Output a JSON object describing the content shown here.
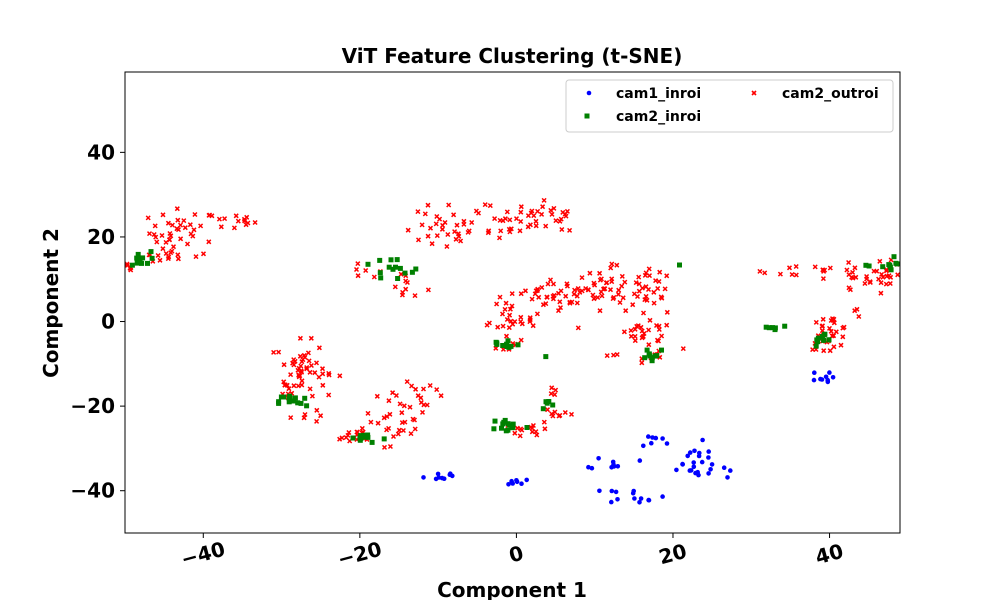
{
  "chart_data": {
    "type": "scatter",
    "title": "ViT Feature Clustering (t-SNE)",
    "xlabel": "Component 1",
    "ylabel": "Component 2",
    "xlim": [
      -50,
      49
    ],
    "ylim": [
      -50,
      59
    ],
    "xticks": [
      -40,
      -20,
      0,
      20,
      40
    ],
    "yticks": [
      -40,
      -20,
      0,
      20,
      40
    ],
    "xtick_labels": [
      "−40",
      "−20",
      "0",
      "20",
      "40"
    ],
    "ytick_labels": [
      "−40",
      "−20",
      "0",
      "20",
      "40"
    ],
    "grid": false,
    "legend": {
      "location": "upper right",
      "columns": 2
    },
    "series": [
      {
        "name": "cam1_inroi",
        "color": "#0000ff",
        "marker": "circle",
        "clusters": [
          {
            "cx": -9.5,
            "cy": -36.5,
            "sx": 1.1,
            "sy": 0.6,
            "n": 9
          },
          {
            "cx": 0.0,
            "cy": -37.5,
            "sx": 0.6,
            "sy": 0.6,
            "n": 7
          },
          {
            "cx": 12.5,
            "cy": -33.5,
            "sx": 1.5,
            "sy": 0.8,
            "n": 9
          },
          {
            "cx": 15.0,
            "cy": -41.0,
            "sx": 2.0,
            "sy": 0.9,
            "n": 13
          },
          {
            "cx": 17.5,
            "cy": -28.5,
            "sx": 1.2,
            "sy": 1.0,
            "n": 7
          },
          {
            "cx": 22.5,
            "cy": -33.5,
            "sx": 2.0,
            "sy": 2.5,
            "n": 22
          },
          {
            "cx": 26.5,
            "cy": -35.5,
            "sx": 0.4,
            "sy": 0.7,
            "n": 3
          },
          {
            "cx": 38.7,
            "cy": -13.5,
            "sx": 0.8,
            "sy": 0.8,
            "n": 9
          }
        ]
      },
      {
        "name": "cam2_inroi",
        "color": "#008000",
        "marker": "square",
        "clusters": [
          {
            "cx": -48.3,
            "cy": 14.5,
            "sx": 0.8,
            "sy": 1.0,
            "n": 12
          },
          {
            "cx": -16.5,
            "cy": 12.0,
            "sx": 2.5,
            "sy": 1.6,
            "n": 14
          },
          {
            "cx": -28.5,
            "cy": -19.0,
            "sx": 0.9,
            "sy": 1.0,
            "n": 14
          },
          {
            "cx": -19.5,
            "cy": -27.5,
            "sx": 1.5,
            "sy": 0.6,
            "n": 14
          },
          {
            "cx": -1.5,
            "cy": -5.5,
            "sx": 1.0,
            "sy": 0.7,
            "n": 12
          },
          {
            "cx": 3.8,
            "cy": -8.5,
            "sx": 0.2,
            "sy": 0.2,
            "n": 1
          },
          {
            "cx": -1.0,
            "cy": -24.5,
            "sx": 1.1,
            "sy": 0.9,
            "n": 14
          },
          {
            "cx": 4.0,
            "cy": -19.5,
            "sx": 0.4,
            "sy": 0.7,
            "n": 5
          },
          {
            "cx": 17.5,
            "cy": -7.5,
            "sx": 0.9,
            "sy": 0.8,
            "n": 10
          },
          {
            "cx": 20.8,
            "cy": 13.5,
            "sx": 0.1,
            "sy": 0.1,
            "n": 1
          },
          {
            "cx": 32.5,
            "cy": -1.5,
            "sx": 1.2,
            "sy": 0.5,
            "n": 6
          },
          {
            "cx": 39.5,
            "cy": -4.5,
            "sx": 1.0,
            "sy": 0.8,
            "n": 10
          },
          {
            "cx": 47.5,
            "cy": 13.0,
            "sx": 1.3,
            "sy": 1.3,
            "n": 14
          }
        ]
      },
      {
        "name": "cam2_outroi",
        "color": "#ff0000",
        "marker": "x",
        "clusters": [
          {
            "cx": -49.5,
            "cy": 12.5,
            "sx": 0.6,
            "sy": 0.8,
            "n": 6
          },
          {
            "cx": -45.5,
            "cy": 15.5,
            "sx": 1.2,
            "sy": 0.9,
            "n": 10
          },
          {
            "cx": -42.5,
            "cy": 21.0,
            "sx": 2.2,
            "sy": 2.8,
            "n": 40
          },
          {
            "cx": -36.0,
            "cy": 23.5,
            "sx": 1.8,
            "sy": 0.9,
            "n": 12
          },
          {
            "cx": -19.5,
            "cy": 11.5,
            "sx": 1.2,
            "sy": 1.0,
            "n": 6
          },
          {
            "cx": -14.0,
            "cy": 8.5,
            "sx": 1.3,
            "sy": 1.8,
            "n": 10
          },
          {
            "cx": -10.0,
            "cy": 21.0,
            "sx": 2.2,
            "sy": 2.3,
            "n": 22
          },
          {
            "cx": -2.5,
            "cy": 24.5,
            "sx": 4.0,
            "sy": 2.8,
            "n": 42
          },
          {
            "cx": 6.0,
            "cy": 24.5,
            "sx": 1.6,
            "sy": 2.2,
            "n": 14
          },
          {
            "cx": -27.5,
            "cy": -11.0,
            "sx": 1.6,
            "sy": 3.2,
            "n": 45
          },
          {
            "cx": -24.0,
            "cy": -12.5,
            "sx": 0.8,
            "sy": 0.8,
            "n": 4
          },
          {
            "cx": -29.5,
            "cy": -16.0,
            "sx": 1.0,
            "sy": 1.2,
            "n": 8
          },
          {
            "cx": -27.0,
            "cy": -22.0,
            "sx": 0.9,
            "sy": 1.0,
            "n": 6
          },
          {
            "cx": -20.0,
            "cy": -27.0,
            "sx": 1.8,
            "sy": 1.0,
            "n": 16
          },
          {
            "cx": -15.0,
            "cy": -22.5,
            "sx": 1.8,
            "sy": 3.3,
            "n": 30
          },
          {
            "cx": -11.5,
            "cy": -17.0,
            "sx": 1.4,
            "sy": 2.2,
            "n": 10
          },
          {
            "cx": -1.0,
            "cy": 0.0,
            "sx": 1.7,
            "sy": 3.0,
            "n": 30
          },
          {
            "cx": 3.5,
            "cy": 4.0,
            "sx": 2.0,
            "sy": 2.5,
            "n": 24
          },
          {
            "cx": 8.0,
            "cy": 7.5,
            "sx": 2.6,
            "sy": 2.8,
            "n": 30
          },
          {
            "cx": 13.5,
            "cy": 7.0,
            "sx": 3.0,
            "sy": 3.0,
            "n": 40
          },
          {
            "cx": 17.5,
            "cy": 6.5,
            "sx": 1.2,
            "sy": 2.8,
            "n": 14
          },
          {
            "cx": 16.5,
            "cy": -3.0,
            "sx": 1.8,
            "sy": 1.5,
            "n": 24
          },
          {
            "cx": 18.0,
            "cy": -8.0,
            "sx": 0.9,
            "sy": 0.8,
            "n": 8
          },
          {
            "cx": 12.0,
            "cy": -8.0,
            "sx": 0.4,
            "sy": 0.3,
            "n": 3
          },
          {
            "cx": 21.5,
            "cy": -6.5,
            "sx": 0.2,
            "sy": 0.2,
            "n": 1
          },
          {
            "cx": 2.0,
            "cy": -25.5,
            "sx": 1.4,
            "sy": 0.9,
            "n": 14
          },
          {
            "cx": 5.5,
            "cy": -21.5,
            "sx": 1.0,
            "sy": 0.6,
            "n": 8
          },
          {
            "cx": 4.5,
            "cy": -16.0,
            "sx": 0.4,
            "sy": 0.7,
            "n": 4
          },
          {
            "cx": 35.5,
            "cy": 12.0,
            "sx": 2.0,
            "sy": 0.7,
            "n": 8
          },
          {
            "cx": 39.5,
            "cy": 12.0,
            "sx": 1.0,
            "sy": 0.3,
            "n": 4
          },
          {
            "cx": 40.0,
            "cy": -2.5,
            "sx": 1.3,
            "sy": 2.0,
            "n": 30
          },
          {
            "cx": 44.5,
            "cy": 10.0,
            "sx": 2.4,
            "sy": 1.8,
            "n": 28
          },
          {
            "cx": 48.0,
            "cy": 12.5,
            "sx": 1.0,
            "sy": 1.2,
            "n": 10
          },
          {
            "cx": 43.5,
            "cy": 2.5,
            "sx": 0.4,
            "sy": 0.6,
            "n": 3
          }
        ]
      }
    ]
  }
}
